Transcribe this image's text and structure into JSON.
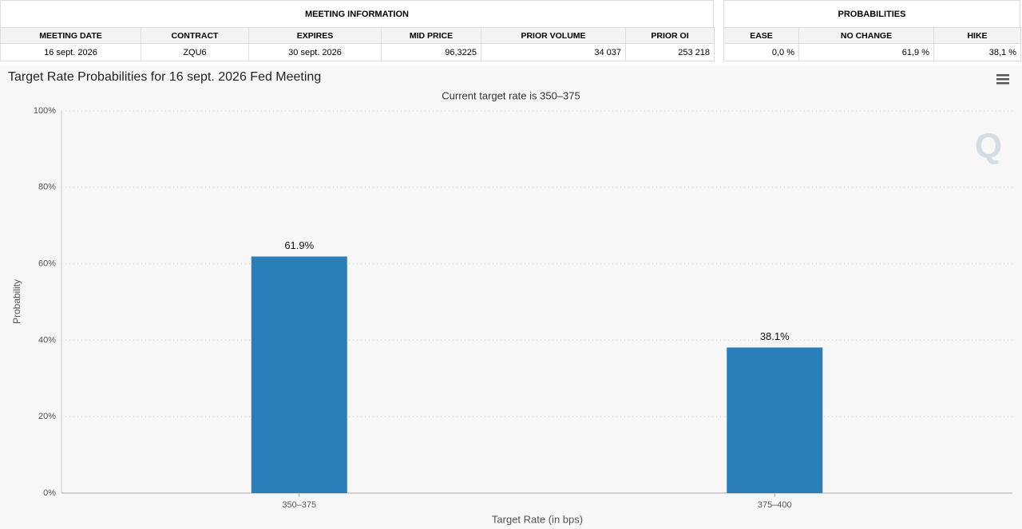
{
  "meeting_information": {
    "title": "MEETING INFORMATION",
    "columns": [
      "MEETING DATE",
      "CONTRACT",
      "EXPIRES",
      "MID PRICE",
      "PRIOR VOLUME",
      "PRIOR OI"
    ],
    "row": [
      "16 sept. 2026",
      "ZQU6",
      "30 sept. 2026",
      "96,3225",
      "34 037",
      "253 218"
    ]
  },
  "probabilities": {
    "title": "PROBABILITIES",
    "columns": [
      "EASE",
      "NO CHANGE",
      "HIKE"
    ],
    "row": [
      "0,0 %",
      "61,9 %",
      "38,1 %"
    ]
  },
  "chart_data": {
    "type": "bar",
    "title": "Target Rate Probabilities for 16 sept. 2026 Fed Meeting",
    "subtitle": "Current target rate is 350–375",
    "x_label": "Target Rate (in bps)",
    "y_label": "Probability",
    "categories": [
      "350–375",
      "375–400"
    ],
    "values": [
      61.9,
      38.1
    ],
    "value_labels": [
      "61.9%",
      "38.1%"
    ],
    "color": "#2b7fb8",
    "ylim": [
      0,
      100
    ],
    "yticks": [
      {
        "value": 0,
        "label": "0%"
      },
      {
        "value": 20,
        "label": "20%"
      },
      {
        "value": 40,
        "label": "40%"
      },
      {
        "value": 60,
        "label": "60%"
      },
      {
        "value": 80,
        "label": "80%"
      },
      {
        "value": 100,
        "label": "100%"
      }
    ],
    "grid": true
  }
}
